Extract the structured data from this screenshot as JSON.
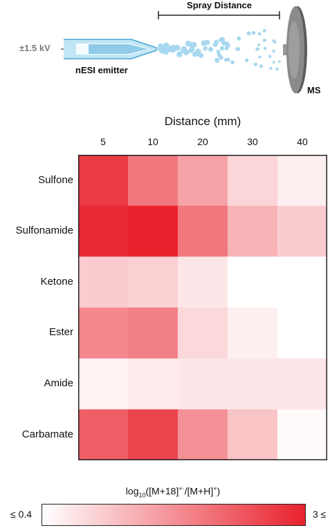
{
  "schematic": {
    "voltage_label": "±1.5 kV",
    "emitter_label": "nESI emitter",
    "spray_distance_label": "Spray Distance",
    "ms_label": "MS",
    "icons": [
      "nesi-emitter-icon",
      "spray-droplets-icon",
      "mass-spectrometer-icon"
    ]
  },
  "chart_data": {
    "type": "heatmap",
    "x_title": "Distance (mm)",
    "x_categories": [
      "5",
      "10",
      "20",
      "30",
      "40"
    ],
    "y_categories": [
      "Sulfone",
      "Sulfonamide",
      "Ketone",
      "Ester",
      "Amide",
      "Carbamate"
    ],
    "values": [
      [
        2.7,
        2.0,
        1.5,
        0.9,
        0.6
      ],
      [
        2.9,
        3.0,
        2.0,
        1.3,
        1.0
      ],
      [
        1.0,
        0.95,
        0.7,
        null,
        null
      ],
      [
        1.8,
        1.9,
        0.85,
        0.6,
        null
      ],
      [
        0.55,
        0.65,
        0.7,
        0.7,
        0.7
      ],
      [
        2.3,
        2.6,
        1.7,
        1.1,
        0.45
      ]
    ],
    "color_range": [
      0.4,
      3.0
    ],
    "color_low": "#ffffff",
    "color_high": "#e8222d",
    "colorbar": {
      "min_label": "≤ 0.4",
      "max_label": "3 ≤"
    }
  }
}
